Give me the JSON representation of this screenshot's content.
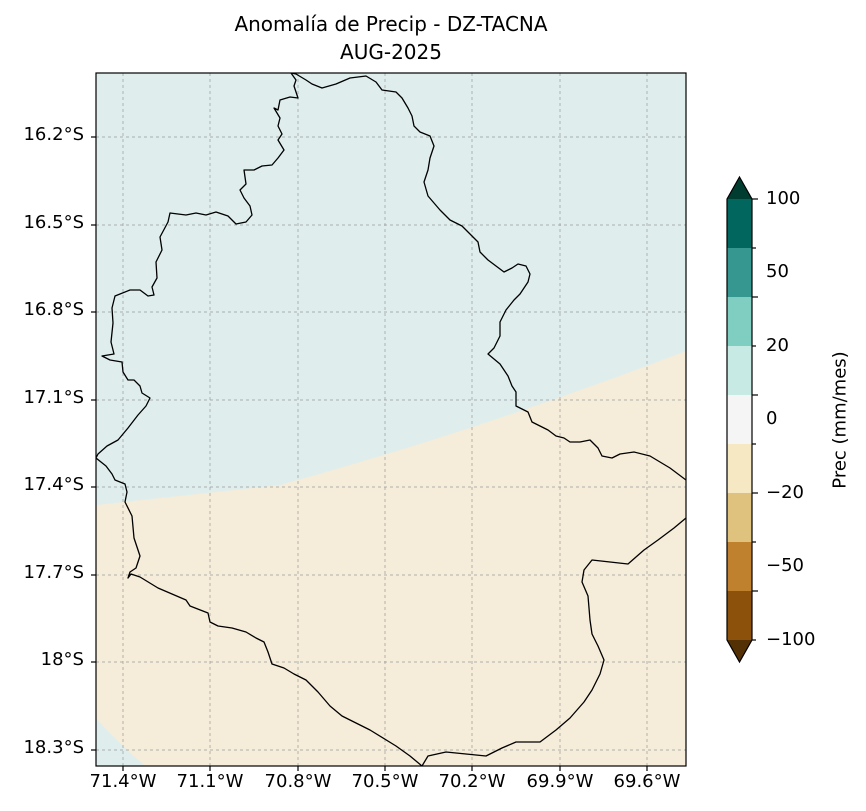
{
  "title": "Anomalía de Precip - DZ-TACNA",
  "subtitle": "AUG-2025",
  "map": {
    "region": "DZ-TACNA",
    "lon_range": [
      -71.55,
      -69.45
    ],
    "lat_range": [
      -18.35,
      -15.98
    ],
    "gridlines": true,
    "lat_ticks": [
      "16.2°S",
      "16.5°S",
      "16.8°S",
      "17.1°S",
      "17.4°S",
      "17.7°S",
      "18°S",
      "18.3°S"
    ],
    "lon_ticks": [
      "71.4°W",
      "71.1°W",
      "70.8°W",
      "70.5°W",
      "70.2°W",
      "69.9°W",
      "69.6°W"
    ],
    "shaded_fields": [
      {
        "name": "Anomaly 0 to 10 mm/mes",
        "color": "#dfeeed"
      },
      {
        "name": "Anomaly -10 to 0 mm/mes",
        "color": "#f5ecd9"
      }
    ]
  },
  "colorbar": {
    "label": "Prec (mm/mes)",
    "extend": "both",
    "tick_labels": [
      "100",
      "50",
      "20",
      "0",
      "−20",
      "−50",
      "−100"
    ],
    "colors_top_to_bottom": [
      "#003c30",
      "#01665e",
      "#35978f",
      "#80cdc1",
      "#c7eae5",
      "#f5f5f5",
      "#f6e8c3",
      "#dfc27d",
      "#bf812d",
      "#8c510a",
      "#543005"
    ]
  }
}
